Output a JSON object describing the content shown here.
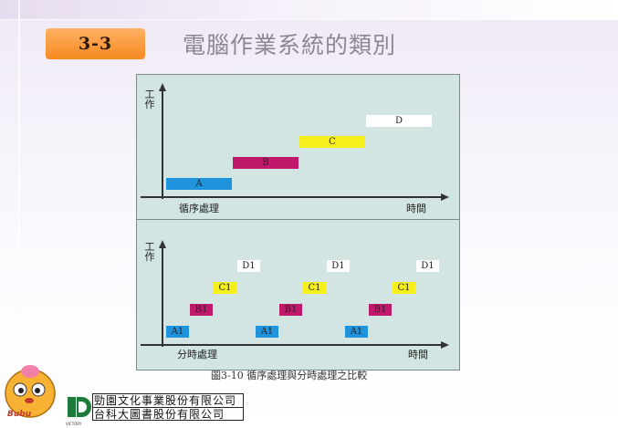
{
  "slide": {
    "section_number": "3-3",
    "title": "電腦作業系統的類別"
  },
  "figure": {
    "caption": "圖3-10  循序處理與分時處理之比較",
    "top_panel": {
      "y_axis_label": "工作",
      "x_axis_label": "時間",
      "mode_label": "循序處理",
      "jobs": [
        {
          "label": "A",
          "color": "#1f94dd",
          "start": 0,
          "end": 1,
          "level": 1
        },
        {
          "label": "B",
          "color": "#c0196c",
          "start": 1,
          "end": 2,
          "level": 2
        },
        {
          "label": "C",
          "color": "#f6ef1b",
          "start": 2,
          "end": 3,
          "level": 3
        },
        {
          "label": "D",
          "color": "#ffffff",
          "start": 3,
          "end": 4,
          "level": 4
        }
      ]
    },
    "bottom_panel": {
      "y_axis_label": "工作",
      "x_axis_label": "時間",
      "mode_label": "分時處理",
      "slices": [
        {
          "label": "A1",
          "color": "#1f94dd",
          "cycle": 0,
          "level": 1
        },
        {
          "label": "B1",
          "color": "#c0196c",
          "cycle": 0,
          "level": 2
        },
        {
          "label": "C1",
          "color": "#f6ef1b",
          "cycle": 0,
          "level": 3
        },
        {
          "label": "D1",
          "color": "#ffffff",
          "cycle": 0,
          "level": 4
        },
        {
          "label": "A1",
          "color": "#1f94dd",
          "cycle": 1,
          "level": 1
        },
        {
          "label": "B1",
          "color": "#c0196c",
          "cycle": 1,
          "level": 2
        },
        {
          "label": "C1",
          "color": "#f6ef1b",
          "cycle": 1,
          "level": 3
        },
        {
          "label": "D1",
          "color": "#ffffff",
          "cycle": 1,
          "level": 4
        },
        {
          "label": "A1",
          "color": "#1f94dd",
          "cycle": 2,
          "level": 1
        },
        {
          "label": "B1",
          "color": "#c0196c",
          "cycle": 2,
          "level": 2
        },
        {
          "label": "C1",
          "color": "#f6ef1b",
          "cycle": 2,
          "level": 3
        },
        {
          "label": "D1",
          "color": "#ffffff",
          "cycle": 2,
          "level": 4
        }
      ]
    }
  },
  "footer": {
    "mascot_text": "Bubu",
    "logo_text": "VICTORY",
    "publisher_1": "勁園文化事業股份有限公司",
    "publisher_2": "台科大圖書股份有限公司"
  }
}
